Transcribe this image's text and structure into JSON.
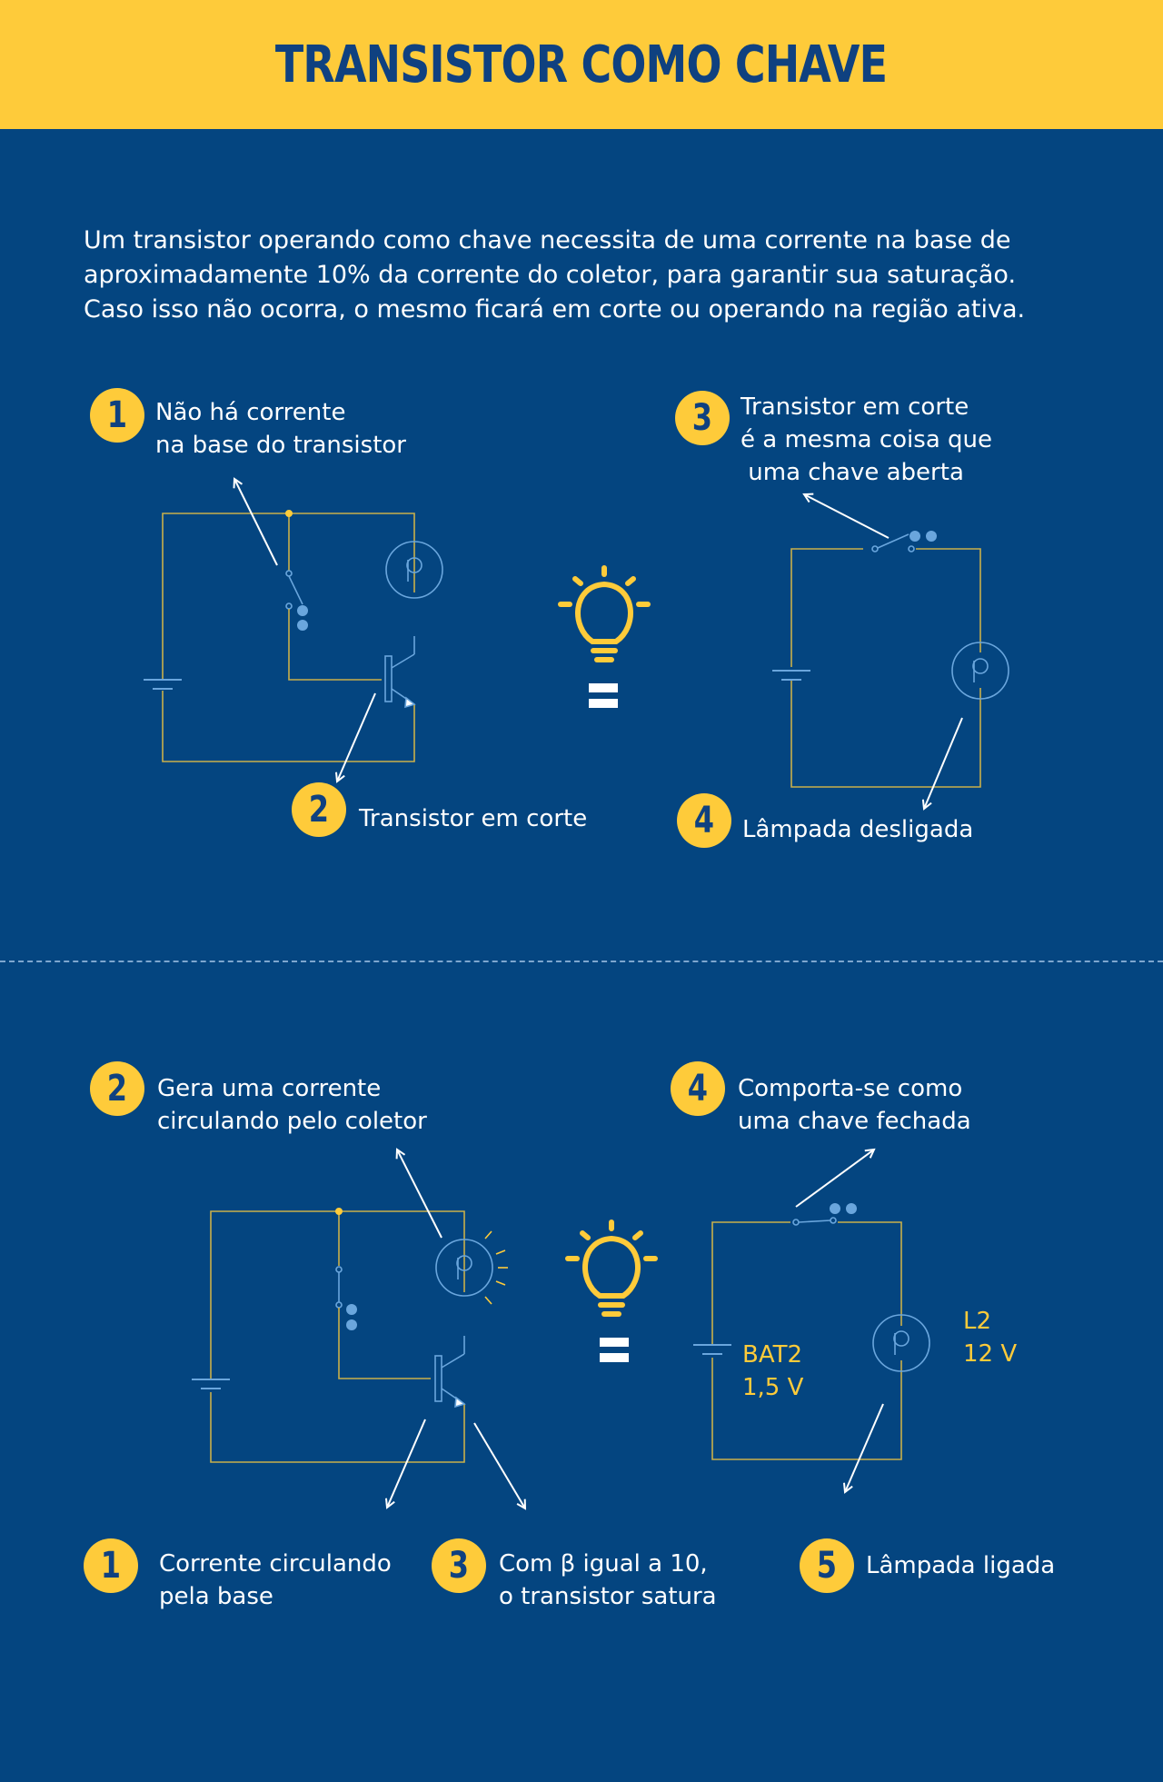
{
  "title": "TRANSISTOR COMO CHAVE",
  "intro": [
    "Um transistor operando como chave necessita de uma corrente na base de",
    "aproximadamente 10% da corrente do coletor, para garantir sua saturação.",
    "Caso isso não ocorra, o mesmo ficará em corte ou operando na região ativa."
  ],
  "colors": {
    "header_bg": "#fecb3a",
    "body_bg": "#044580",
    "accent": "#fecb3a",
    "text": "#ffffff",
    "wire": "#c9b04a",
    "component": "#6aa6dd"
  },
  "top_section": {
    "step1": {
      "number": "1",
      "lines": [
        "Não há corrente",
        "na base do transistor"
      ]
    },
    "step2": {
      "number": "2",
      "lines": [
        "Transistor em corte"
      ]
    },
    "step3": {
      "number": "3",
      "lines": [
        "Transistor em corte",
        "é a mesma coisa que",
        " uma chave aberta"
      ]
    },
    "step4": {
      "number": "4",
      "lines": [
        "Lâmpada desligada"
      ]
    },
    "bulb_icon": "lightbulb-icon",
    "equals_icon": "equals-icon"
  },
  "bottom_section": {
    "step2": {
      "number": "2",
      "lines": [
        "Gera uma corrente",
        "circulando pelo coletor"
      ]
    },
    "step4": {
      "number": "4",
      "lines": [
        "Comporta-se como",
        "uma chave fechada"
      ]
    },
    "step1": {
      "number": "1",
      "lines": [
        "Corrente circulando",
        "pela base"
      ]
    },
    "step3": {
      "number": "3",
      "lines": [
        "Com β igual a 10,",
        "o transistor satura"
      ]
    },
    "step5": {
      "number": "5",
      "lines": [
        "Lâmpada ligada"
      ]
    },
    "battery_label": [
      "BAT2",
      "1,5 V"
    ],
    "lamp_label": [
      "L2",
      "12 V"
    ],
    "bulb_icon": "lightbulb-icon",
    "equals_icon": "equals-icon"
  }
}
